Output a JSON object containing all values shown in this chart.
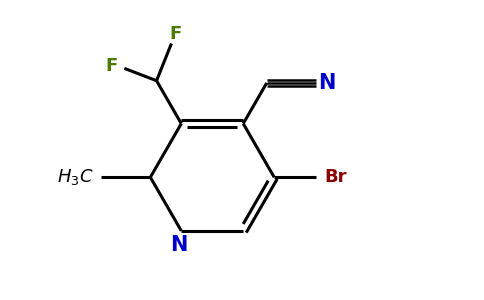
{
  "background_color": "#ffffff",
  "figure_width": 4.84,
  "figure_height": 3.0,
  "dpi": 100,
  "bond_color": "#000000",
  "N_color": "#0000cd",
  "F_color": "#4a7a00",
  "Br_color": "#8b0000",
  "C_color": "#000000",
  "line_width": 2.2,
  "font_size": 13,
  "xlim": [
    0.5,
    8.5
  ],
  "ylim": [
    0.5,
    6.5
  ]
}
